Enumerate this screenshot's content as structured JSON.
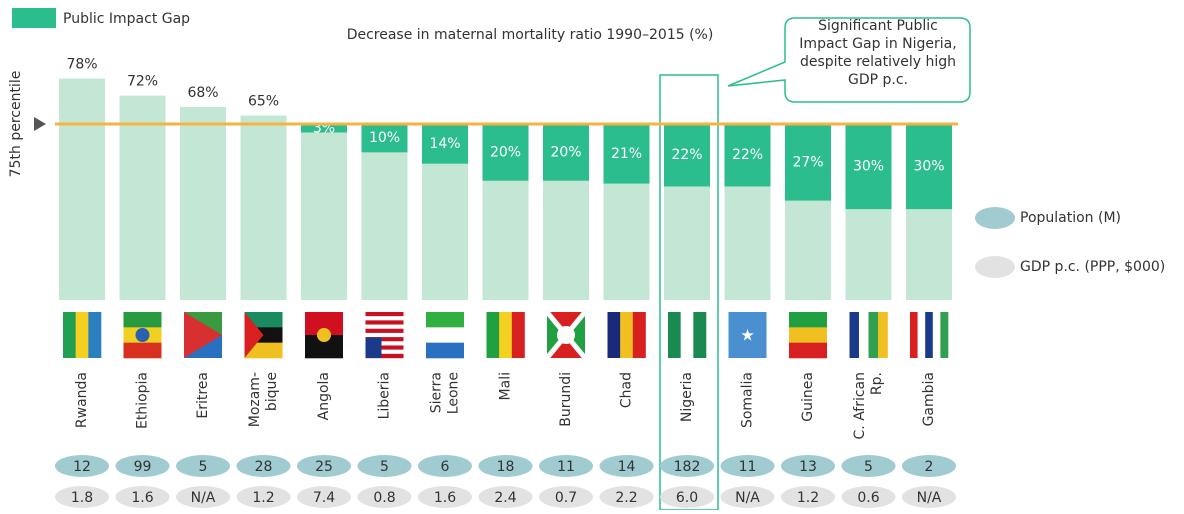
{
  "chart_data": {
    "type": "bar",
    "title": "Decrease in maternal mortality ratio 1990–2015 (%)",
    "categories": [
      "Rwanda",
      "Ethiopia",
      "Eritrea",
      "Mozam-\nbique",
      "Angola",
      "Liberia",
      "Sierra\nLeone",
      "Mali",
      "Burundi",
      "Chad",
      "Nigeria",
      "Somalia",
      "Guinea",
      "C. African\nRp.",
      "Gambia"
    ],
    "series": [
      {
        "name": "Decrease",
        "color": "#c4e7d5",
        "values": [
          78,
          72,
          68,
          65,
          59,
          52,
          48,
          42,
          42,
          41,
          40,
          40,
          35,
          32,
          32
        ],
        "value_labels": [
          "78%",
          "72%",
          "68%",
          "65%",
          null,
          null,
          null,
          null,
          null,
          null,
          null,
          null,
          null,
          null,
          null
        ]
      },
      {
        "name": "Public Impact Gap",
        "color": "#2bbd8e",
        "values": [
          null,
          null,
          null,
          null,
          3,
          10,
          14,
          20,
          20,
          21,
          22,
          22,
          27,
          30,
          30
        ],
        "value_labels": [
          null,
          null,
          null,
          null,
          "3%",
          "10%",
          "14%",
          "20%",
          "20%",
          "21%",
          "22%",
          "22%",
          "27%",
          "30%",
          "30%"
        ]
      }
    ],
    "percentile": {
      "label": "75th percentile",
      "value": 62,
      "color": "#f5b342"
    },
    "ylim": [
      0,
      80
    ],
    "population": {
      "name": "Population (M)",
      "color": "#9fcbd1",
      "values": [
        12,
        99,
        5,
        28,
        25,
        5,
        6,
        18,
        11,
        14,
        182,
        11,
        13,
        5,
        2
      ]
    },
    "gdp": {
      "name": "GDP p.c. (PPP, $000)",
      "color": "#e2e2e2",
      "values": [
        1.8,
        1.6,
        null,
        1.2,
        7.4,
        0.8,
        1.6,
        2.4,
        0.7,
        2.2,
        6.0,
        null,
        1.2,
        0.6,
        null
      ],
      "value_labels": [
        "1.8",
        "1.6",
        "N/A",
        "1.2",
        "7.4",
        "0.8",
        "1.6",
        "2.4",
        "0.7",
        "2.2",
        "6.0",
        "N/A",
        "1.2",
        "0.6",
        "N/A"
      ]
    },
    "annotation": "Significant Public\nImpact Gap in Nigeria,\ndespite relatively high\nGDP p.c."
  }
}
